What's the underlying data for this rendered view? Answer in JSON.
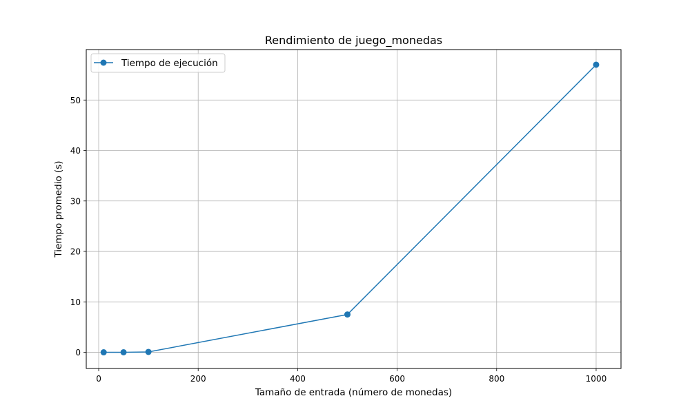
{
  "chart_data": {
    "type": "line",
    "title": "Rendimiento de juego_monedas",
    "xlabel": "Tamaño de entrada (número de monedas)",
    "ylabel": "Tiempo promedio (s)",
    "xlim": [
      -25,
      1050
    ],
    "ylim": [
      -3.2,
      60.0
    ],
    "xticks": [
      0,
      200,
      400,
      600,
      800,
      1000
    ],
    "yticks": [
      0,
      10,
      20,
      30,
      40,
      50
    ],
    "grid": true,
    "legend_position": "top-left",
    "series": [
      {
        "name": "Tiempo de ejecución",
        "color": "#1f77b4",
        "marker": "circle",
        "x": [
          10,
          50,
          100,
          500,
          1000
        ],
        "y": [
          0.0,
          0.01,
          0.08,
          7.5,
          57.0
        ]
      }
    ]
  }
}
